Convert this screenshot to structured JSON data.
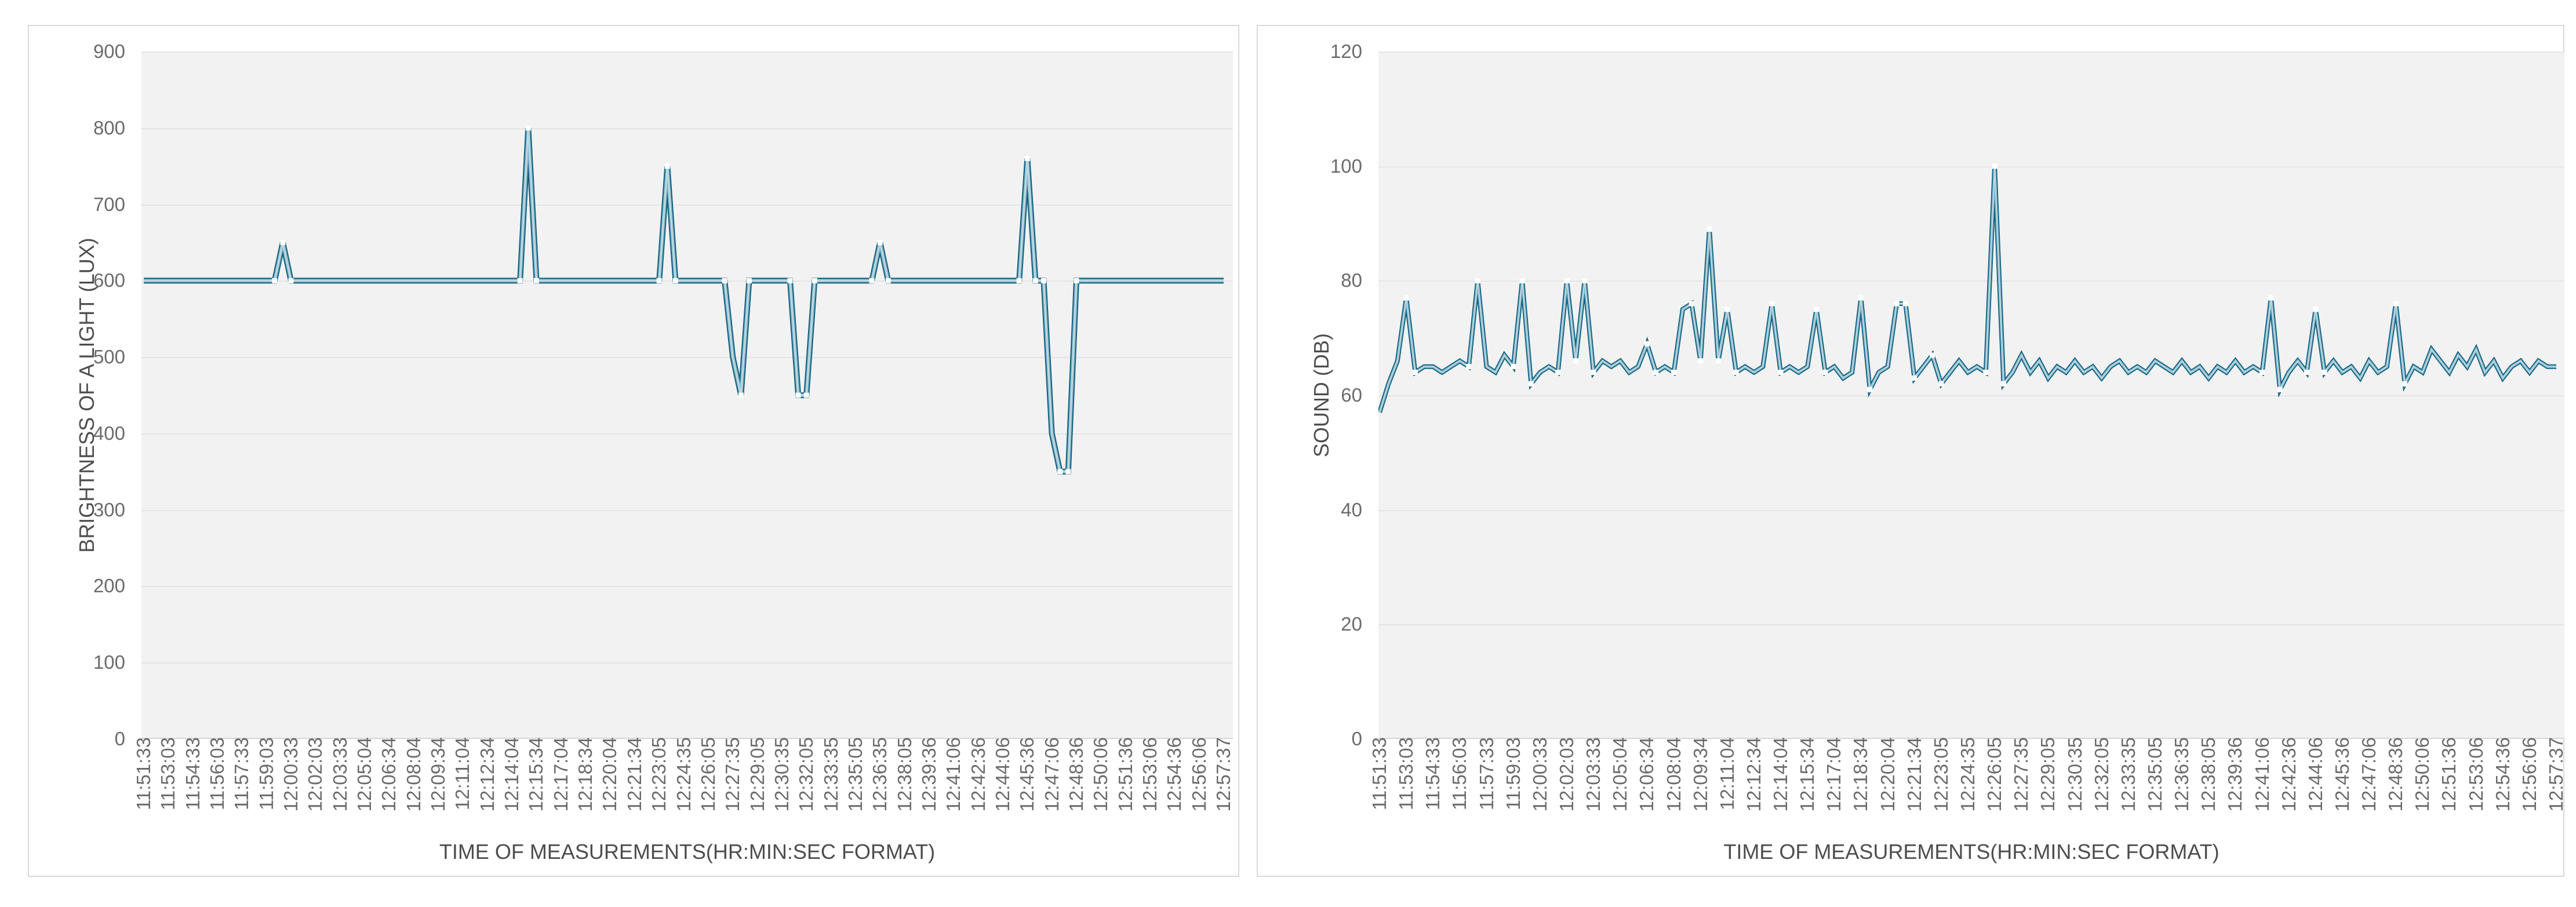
{
  "page": {
    "background": "#ffffff"
  },
  "style": {
    "card_border": "#d9d9d9",
    "plot_background": "#f2f2f2",
    "gridline_color": "#e4e4e4",
    "axis_line_color": "#d6d6d6",
    "tick_label_color": "#6b6b6b",
    "axis_title_color": "#4d4d4d",
    "line_color_outer": "#11607f",
    "line_color_mid": "#7fb2c5",
    "line_color_core": "#bdd8e1",
    "marker_color": "#ffffff"
  },
  "chart_data": [
    {
      "type": "line",
      "title": "",
      "xlabel": "TIME OF MEASUREMENTS(HR:MIN:SEC FORMAT)",
      "ylabel": "BRIGHTNESS OF A LIGHT  (LUX)",
      "ylim": [
        0,
        900
      ],
      "y_tick_step": 100,
      "y_tick_labels": [
        "900",
        "800",
        "700",
        "600",
        "500",
        "400",
        "300",
        "200",
        "100",
        "0"
      ],
      "grid": "horizontal",
      "legend": "none",
      "x_tick_rotation_degrees": 90,
      "x_start": "11:51:33",
      "x_interval_seconds": 30,
      "x_points_per_tick": 3,
      "x_tick_labels": [
        "11:51:33",
        "11:53:03",
        "11:54:33",
        "11:56:03",
        "11:57:33",
        "11:59:03",
        "12:00:33",
        "12:02:03",
        "12:03:33",
        "12:05:04",
        "12:06:34",
        "12:08:04",
        "12:09:34",
        "12:11:04",
        "12:12:34",
        "12:14:04",
        "12:15:34",
        "12:17:04",
        "12:18:34",
        "12:20:04",
        "12:21:34",
        "12:23:05",
        "12:24:35",
        "12:26:05",
        "12:27:35",
        "12:29:05",
        "12:30:35",
        "12:32:05",
        "12:33:35",
        "12:35:05",
        "12:36:35",
        "12:38:05",
        "12:39:36",
        "12:41:06",
        "12:42:36",
        "12:44:06",
        "12:45:36",
        "12:47:06",
        "12:48:36",
        "12:50:06",
        "12:51:36",
        "12:53:06",
        "12:54:36",
        "12:56:06",
        "12:57:37"
      ],
      "series": [
        {
          "name": "brightness_lux",
          "values": [
            600,
            600,
            600,
            600,
            600,
            600,
            600,
            600,
            600,
            600,
            600,
            600,
            600,
            600,
            600,
            600,
            600,
            650,
            600,
            600,
            600,
            600,
            600,
            600,
            600,
            600,
            600,
            600,
            600,
            600,
            600,
            600,
            600,
            600,
            600,
            600,
            600,
            600,
            600,
            600,
            600,
            600,
            600,
            600,
            600,
            600,
            600,
            800,
            600,
            600,
            600,
            600,
            600,
            600,
            600,
            600,
            600,
            600,
            600,
            600,
            600,
            600,
            600,
            600,
            750,
            600,
            600,
            600,
            600,
            600,
            600,
            600,
            500,
            450,
            600,
            600,
            600,
            600,
            600,
            600,
            450,
            450,
            600,
            600,
            600,
            600,
            600,
            600,
            600,
            600,
            650,
            600,
            600,
            600,
            600,
            600,
            600,
            600,
            600,
            600,
            600,
            600,
            600,
            600,
            600,
            600,
            600,
            600,
            760,
            600,
            600,
            400,
            350,
            350,
            600,
            600,
            600,
            600,
            600,
            600,
            600,
            600,
            600,
            600,
            600,
            600,
            600,
            600,
            600,
            600,
            600,
            600,
            600
          ]
        }
      ]
    },
    {
      "type": "line",
      "title": "",
      "xlabel": "TIME OF MEASUREMENTS(HR:MIN:SEC FORMAT)",
      "ylabel": "SOUND (DB)",
      "ylim": [
        0,
        120
      ],
      "y_tick_step": 20,
      "y_tick_labels": [
        "120",
        "100",
        "80",
        "60",
        "40",
        "20",
        "0"
      ],
      "grid": "horizontal",
      "legend": "none",
      "x_tick_rotation_degrees": 90,
      "x_start": "11:51:33",
      "x_interval_seconds": 30,
      "x_points_per_tick": 3,
      "x_tick_labels": [
        "11:51:33",
        "11:53:03",
        "11:54:33",
        "11:56:03",
        "11:57:33",
        "11:59:03",
        "12:00:33",
        "12:02:03",
        "12:03:33",
        "12:05:04",
        "12:06:34",
        "12:08:04",
        "12:09:34",
        "12:11:04",
        "12:12:34",
        "12:14:04",
        "12:15:34",
        "12:17:04",
        "12:18:34",
        "12:20:04",
        "12:21:34",
        "12:23:05",
        "12:24:35",
        "12:26:05",
        "12:27:35",
        "12:29:05",
        "12:30:35",
        "12:32:05",
        "12:33:35",
        "12:35:05",
        "12:36:35",
        "12:38:05",
        "12:39:36",
        "12:41:06",
        "12:42:36",
        "12:44:06",
        "12:45:36",
        "12:47:06",
        "12:48:36",
        "12:50:06",
        "12:51:36",
        "12:53:06",
        "12:54:36",
        "12:56:06",
        "12:57:37"
      ],
      "series": [
        {
          "name": "sound_db",
          "values": [
            57,
            62,
            66,
            77,
            64,
            65,
            65,
            64,
            65,
            66,
            65,
            80,
            65,
            64,
            67,
            65,
            80,
            62,
            64,
            65,
            64,
            80,
            66,
            80,
            64,
            66,
            65,
            66,
            64,
            65,
            69,
            64,
            65,
            64,
            75,
            76,
            66,
            89,
            66,
            75,
            64,
            65,
            64,
            65,
            76,
            64,
            65,
            64,
            65,
            75,
            64,
            65,
            63,
            64,
            77,
            61,
            64,
            65,
            76,
            76,
            63,
            65,
            67,
            62,
            64,
            66,
            64,
            65,
            64,
            100,
            62,
            64,
            67,
            64,
            66,
            63,
            65,
            64,
            66,
            64,
            65,
            63,
            65,
            66,
            64,
            65,
            64,
            66,
            65,
            64,
            66,
            64,
            65,
            63,
            65,
            64,
            66,
            64,
            65,
            64,
            77,
            61,
            64,
            66,
            64,
            75,
            64,
            66,
            64,
            65,
            63,
            66,
            64,
            65,
            76,
            62,
            65,
            64,
            68,
            66,
            64,
            67,
            65,
            68,
            64,
            66,
            63,
            65,
            66,
            64,
            66,
            65,
            65
          ]
        }
      ]
    }
  ]
}
